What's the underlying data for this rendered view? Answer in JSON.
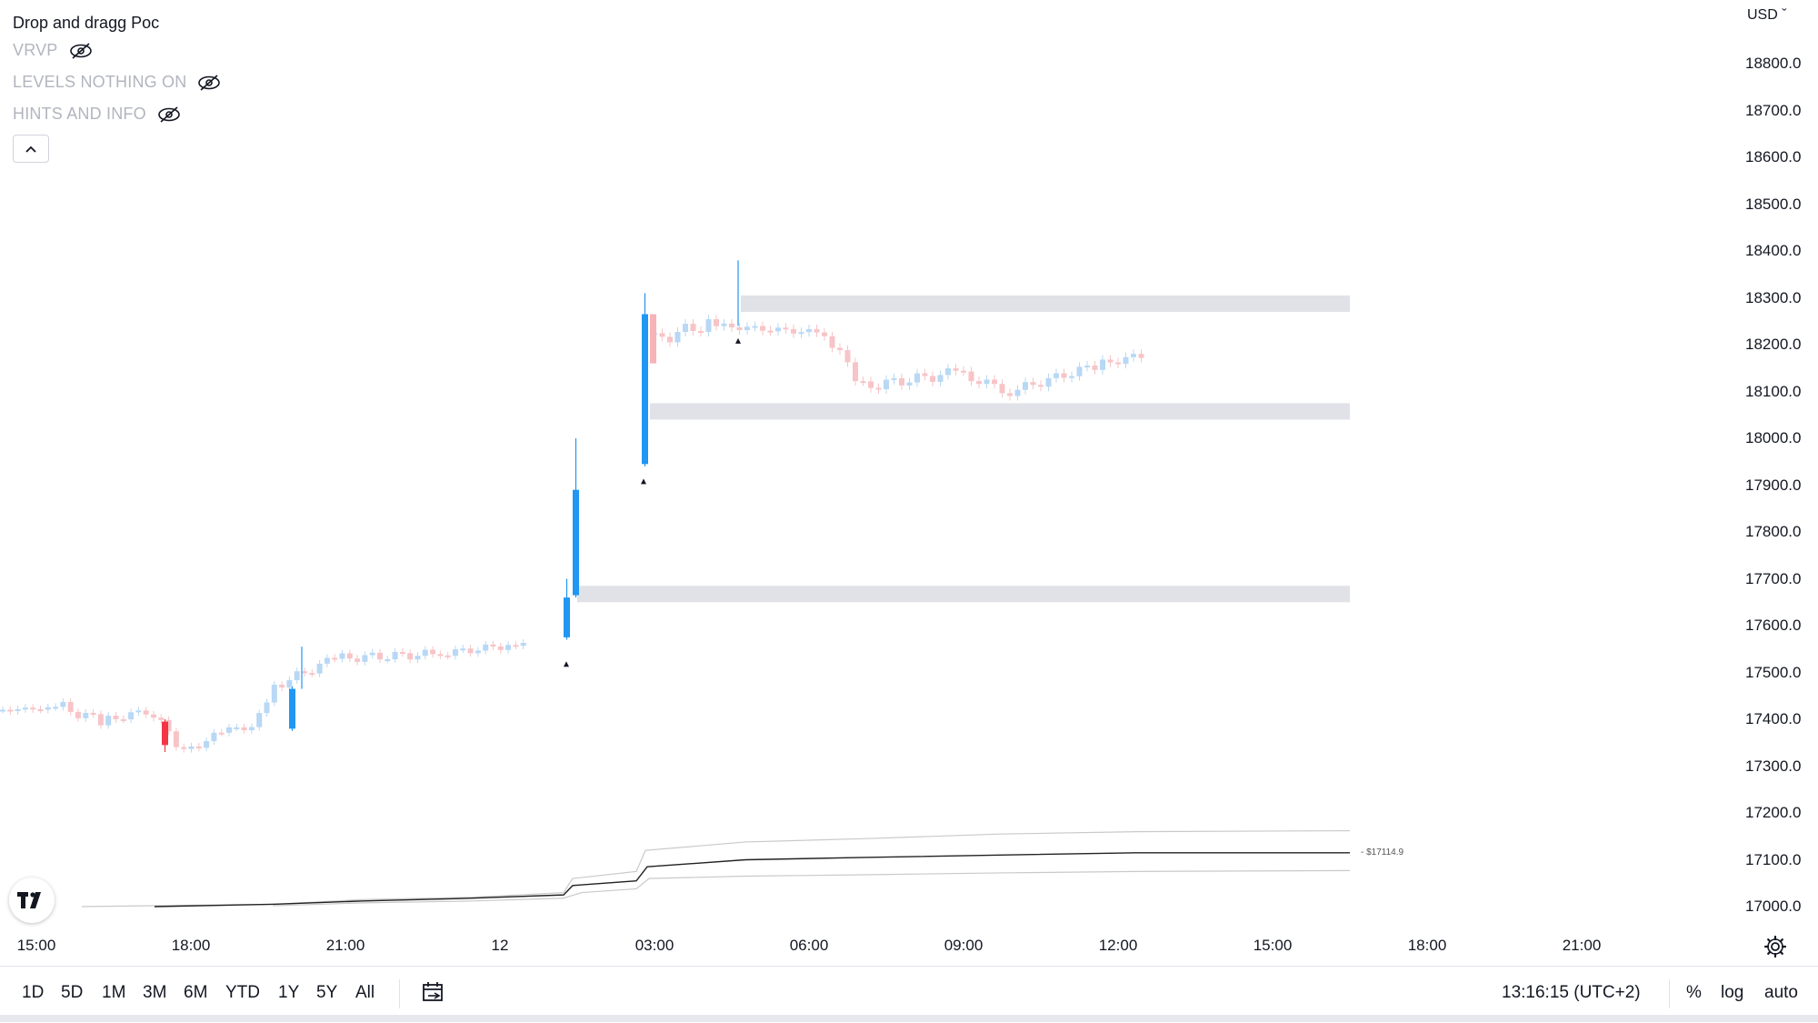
{
  "legend": {
    "title": "Drop and dragg Poc",
    "rows": [
      {
        "label": "VRVP",
        "icon": "eye-off-icon"
      },
      {
        "label": "LEVELS NOTHING ON",
        "icon": "eye-off-icon"
      },
      {
        "label": "HINTS AND INFO",
        "icon": "eye-off-icon"
      }
    ],
    "collapse_icon": "chevron-up-icon"
  },
  "currency": "USD",
  "price_axis": [
    "18800.0",
    "18700.0",
    "18600.0",
    "18500.0",
    "18400.0",
    "18300.0",
    "18200.0",
    "18100.0",
    "18000.0",
    "17900.0",
    "17800.0",
    "17700.0",
    "17600.0",
    "17500.0",
    "17400.0",
    "17300.0",
    "17200.0",
    "17100.0",
    "17000.0"
  ],
  "time_axis": [
    "15:00",
    "18:00",
    "21:00",
    "12",
    "03:00",
    "06:00",
    "09:00",
    "12:00",
    "15:00",
    "18:00",
    "21:00"
  ],
  "poc_label": "- $17114.9",
  "bottom_bar": {
    "ranges": [
      "1D",
      "5D",
      "1M",
      "3M",
      "6M",
      "YTD",
      "1Y",
      "5Y",
      "All"
    ],
    "clock": "13:16:15 (UTC+2)",
    "percent": "%",
    "log": "log",
    "auto": "auto"
  },
  "colors": {
    "up": "#2196f3",
    "down": "#f23645",
    "zone": "#e1e2e8",
    "line": "#000000"
  },
  "chart_data": {
    "type": "candlestick",
    "ylim": [
      17000,
      18800
    ],
    "zones": [
      {
        "low": 18270,
        "high": 18305
      },
      {
        "low": 18040,
        "high": 18075
      },
      {
        "low": 17650,
        "high": 17685
      }
    ],
    "markers": [
      17520,
      17910,
      18210
    ],
    "poc_value": 17114.9
  }
}
